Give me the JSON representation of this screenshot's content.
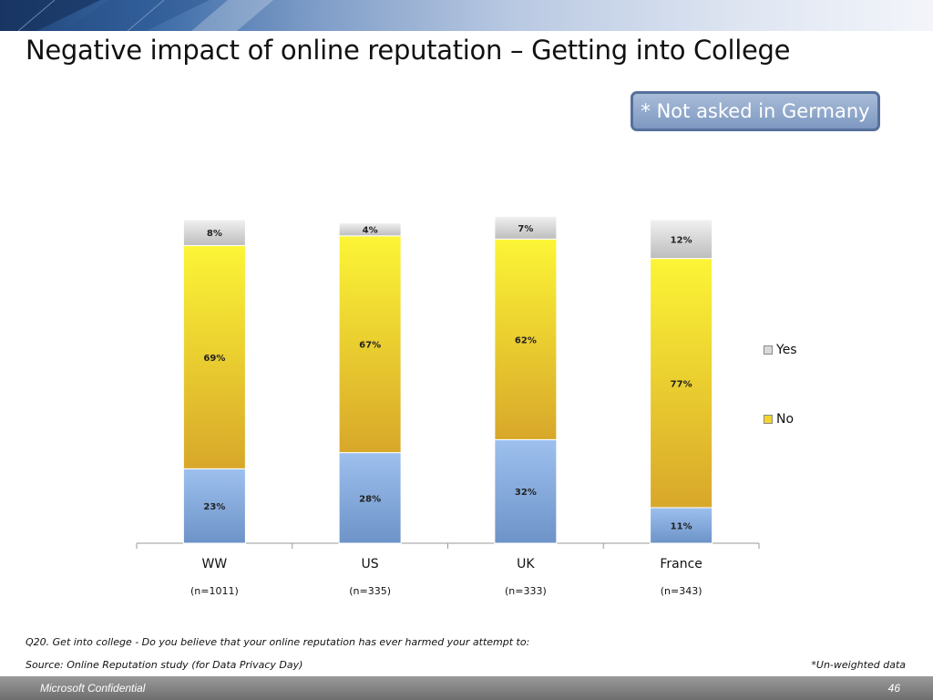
{
  "slide": {
    "title": "Negative impact of online reputation – Getting into College",
    "note_box": "* Not asked in Germany",
    "question": "Q20. Get into college - Do you believe that your online reputation has ever harmed your attempt to:",
    "source": "Source: Online Reputation study (for Data Privacy Day)",
    "weight_note": "*Un-weighted data",
    "footer_text": "Microsoft Confidential",
    "page_number": "46"
  },
  "colors": {
    "yes": "#d9d9d9",
    "no": "#f5d42c",
    "blue": "#8db1e2",
    "banner": "#3a6aa6"
  },
  "chart_data": {
    "type": "bar",
    "stacked": true,
    "percent": true,
    "categories": [
      "WW",
      "US",
      "UK",
      "France"
    ],
    "sample_sizes": [
      "(n=1011)",
      "(n=335)",
      "(n=333)",
      "(n=343)"
    ],
    "series": [
      {
        "values": [
          23,
          28,
          32,
          11
        ],
        "labels": [
          "23%",
          "28%",
          "32%",
          "11%"
        ],
        "color": "#8db1e2"
      },
      {
        "name": "No",
        "values": [
          69,
          67,
          62,
          77
        ],
        "labels": [
          "69%",
          "67%",
          "62%",
          "77%"
        ],
        "color": "#f5d42c"
      },
      {
        "name": "Yes",
        "values": [
          8,
          4,
          7,
          12
        ],
        "labels": [
          "8%",
          "4%",
          "7%",
          "12%"
        ],
        "color": "#d9d9d9"
      }
    ],
    "ylim": [
      0,
      100
    ],
    "grid": false,
    "legend": {
      "position": "right",
      "entries": [
        "Yes",
        "No"
      ]
    }
  }
}
